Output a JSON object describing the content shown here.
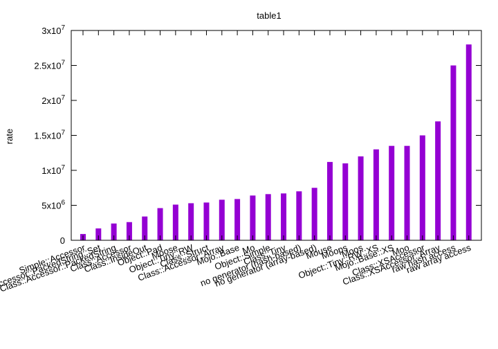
{
  "chart_data": {
    "type": "bar",
    "title": "table1",
    "xlabel": "",
    "ylabel": "rate",
    "ylim": [
      0,
      30000000
    ],
    "yticks": [
      {
        "value": 0,
        "base": "0",
        "exp": ""
      },
      {
        "value": 5000000,
        "base": "5x10",
        "exp": "6"
      },
      {
        "value": 10000000,
        "base": "1x10",
        "exp": "7"
      },
      {
        "value": 15000000,
        "base": "1.5x10",
        "exp": "7"
      },
      {
        "value": 20000000,
        "base": "2x10",
        "exp": "7"
      },
      {
        "value": 25000000,
        "base": "2.5x10",
        "exp": "7"
      },
      {
        "value": 30000000,
        "base": "3x10",
        "exp": "7"
      }
    ],
    "grid": false,
    "legend": "none",
    "bar_color": "#9400d3",
    "categories": [
      "Simple::Accessor",
      "Accessor::PackedString::Set",
      "Class::Accessor::PackedString",
      "Class::Accessor",
      "Class::InsideOut",
      "Object::Pad",
      "Moose",
      "Object::Tiny::RW",
      "Class::Struct",
      "Class::Accessor::Array",
      "Mojo::Base",
      "Mo",
      "Object::Simple",
      "Class::Tiny",
      "no generator (hash-based)",
      "no generator (array-based)",
      "Mouse",
      "Moops",
      "Moos",
      "Object::Tiny::RW::XS",
      "Mojo::Base::XS",
      "Moo",
      "Class::XSAccessor",
      "Class::XSAccessor::Array",
      "raw hash access",
      "raw array access"
    ],
    "values": [
      900000,
      1700000,
      2400000,
      2600000,
      3400000,
      4600000,
      5100000,
      5300000,
      5400000,
      5800000,
      5900000,
      6400000,
      6600000,
      6700000,
      7000000,
      7500000,
      11200000,
      11000000,
      12000000,
      13000000,
      13500000,
      13500000,
      15000000,
      17000000,
      25000000,
      28000000
    ]
  }
}
